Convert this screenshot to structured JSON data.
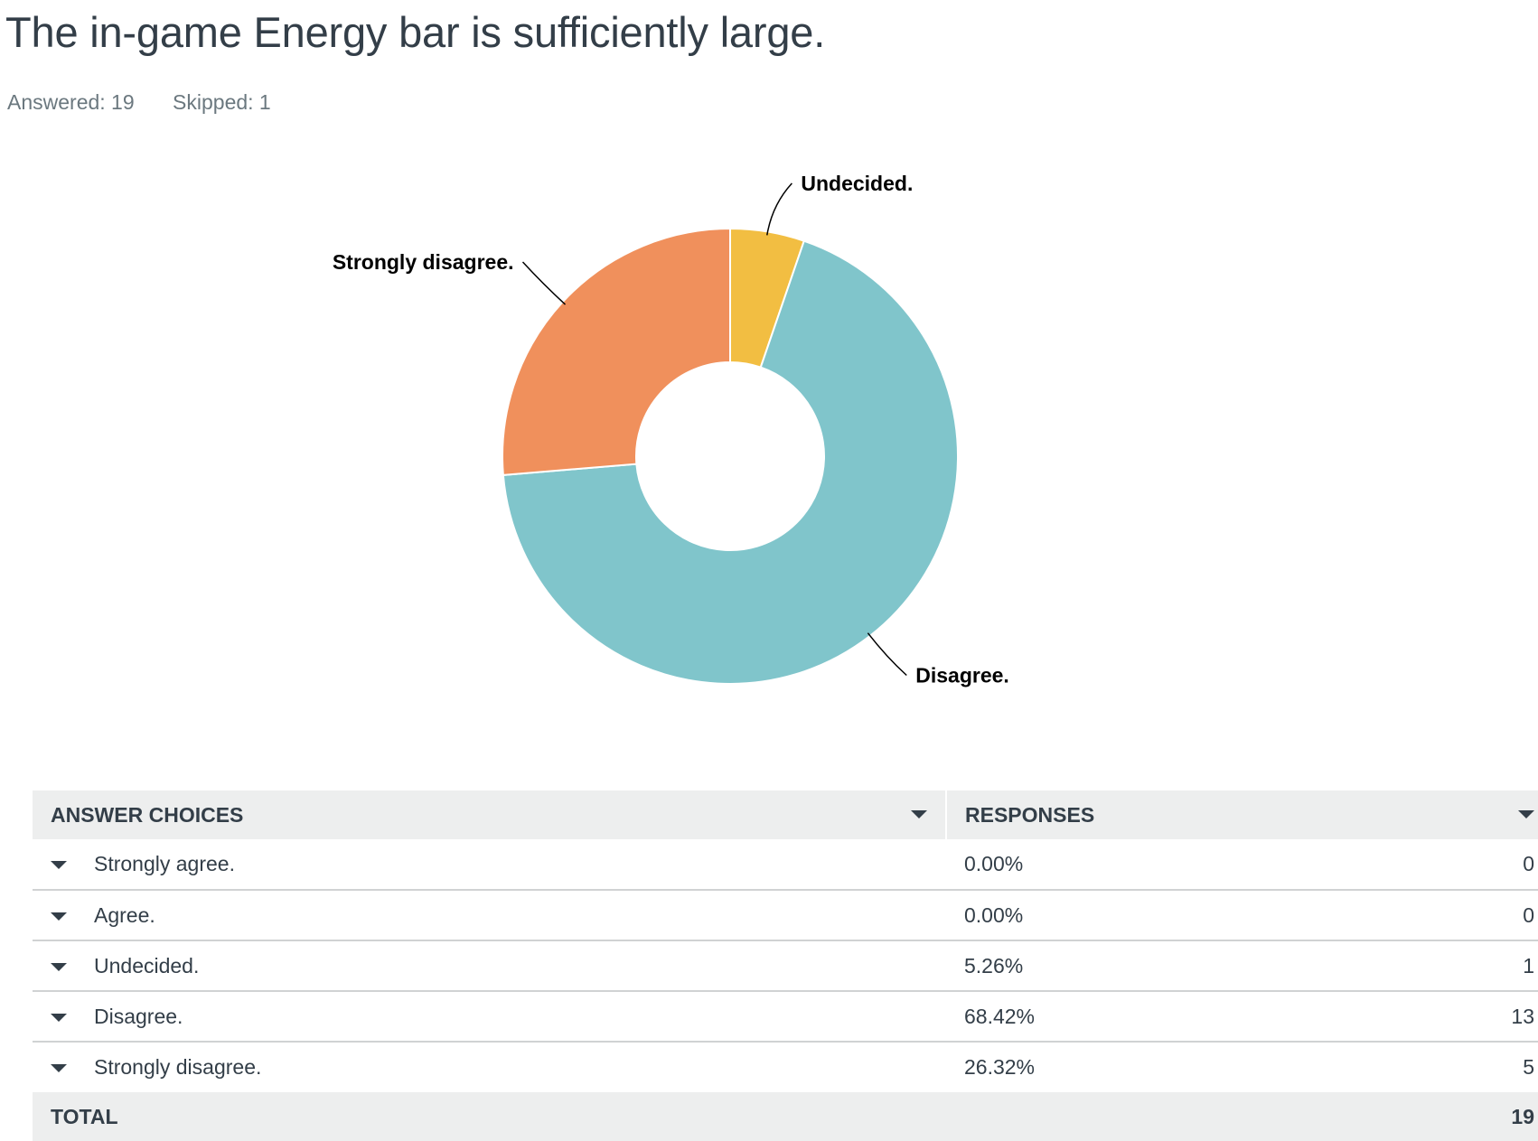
{
  "question": {
    "title": "The in-game Energy bar is sufficiently large.",
    "answered": "Answered: 19",
    "skipped": "Skipped: 1"
  },
  "chart_data": {
    "type": "pie",
    "donut": true,
    "categories": [
      "Undecided.",
      "Disagree.",
      "Strongly disagree."
    ],
    "values": [
      5.26,
      68.42,
      26.32
    ],
    "colors": [
      "#f2be42",
      "#80c5cb",
      "#f0905c"
    ],
    "legend": "none (slice labels with leader lines)"
  },
  "table": {
    "headers": {
      "choices": "ANSWER CHOICES",
      "responses": "RESPONSES"
    },
    "rows": [
      {
        "label": "Strongly agree.",
        "percent": "0.00%",
        "count": "0"
      },
      {
        "label": "Agree.",
        "percent": "0.00%",
        "count": "0"
      },
      {
        "label": "Undecided.",
        "percent": "5.26%",
        "count": "1"
      },
      {
        "label": "Disagree.",
        "percent": "68.42%",
        "count": "13"
      },
      {
        "label": "Strongly disagree.",
        "percent": "26.32%",
        "count": "5"
      }
    ],
    "total_label": "TOTAL",
    "total_value": "19"
  }
}
